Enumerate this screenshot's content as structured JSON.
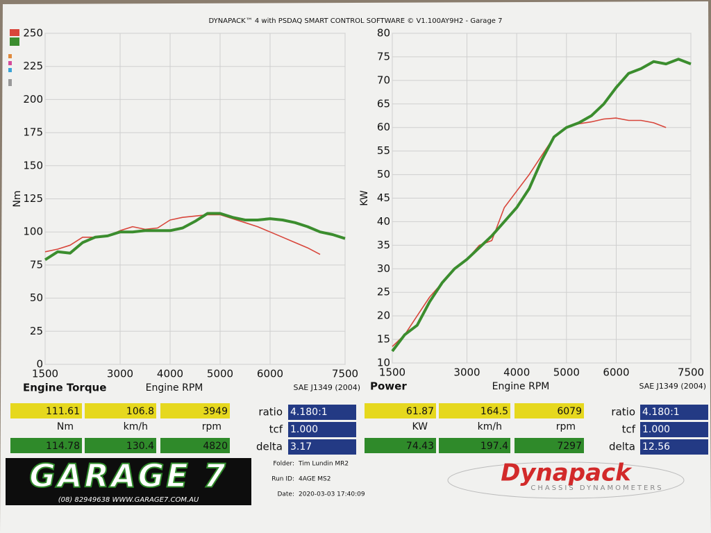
{
  "header": {
    "title": "DYNAPACK™ 4 with PSDAQ SMART CONTROL SOFTWARE © V1.100AY9H2 - Garage 7"
  },
  "chart_data": [
    {
      "type": "line",
      "title": "Engine Torque",
      "x_label": "Engine RPM",
      "y_label": "Nm",
      "standard": "SAE J1349 (2004)",
      "x": [
        1500,
        1750,
        2000,
        2250,
        2500,
        2750,
        3000,
        3250,
        3500,
        3750,
        4000,
        4250,
        4500,
        4750,
        5000,
        5250,
        5500,
        5750,
        6000,
        6250,
        6500,
        6750,
        7000,
        7250,
        7500
      ],
      "xlim": [
        1500,
        7500
      ],
      "xticks": [
        1500,
        3000,
        4000,
        5000,
        6000,
        7500
      ],
      "ylim": [
        0,
        250
      ],
      "yticks": [
        0,
        25,
        50,
        75,
        100,
        125,
        150,
        175,
        200,
        225,
        250
      ],
      "grid": true,
      "series": [
        {
          "color": "#d8453a",
          "values": [
            85,
            87,
            90,
            96,
            96,
            97,
            101,
            104,
            102,
            103,
            109,
            111,
            112,
            113,
            113,
            110,
            107,
            104,
            100,
            96,
            92,
            88,
            83,
            null,
            null
          ]
        },
        {
          "color": "#3b8d2e",
          "values": [
            79,
            85,
            84,
            92,
            96,
            97,
            100,
            100,
            101,
            101,
            101,
            103,
            108,
            114,
            114,
            111,
            109,
            109,
            110,
            109,
            107,
            104,
            100,
            98,
            95
          ]
        }
      ]
    },
    {
      "type": "line",
      "title": "Power",
      "x_label": "Engine RPM",
      "y_label": "KW",
      "standard": "SAE J1349 (2004)",
      "x": [
        1500,
        1750,
        2000,
        2250,
        2500,
        2750,
        3000,
        3250,
        3500,
        3750,
        4000,
        4250,
        4500,
        4750,
        5000,
        5250,
        5500,
        5750,
        6000,
        6250,
        6500,
        6750,
        7000,
        7250,
        7500
      ],
      "xlim": [
        1500,
        7500
      ],
      "xticks": [
        1500,
        3000,
        4000,
        5000,
        6000,
        7500
      ],
      "ylim": [
        10,
        80
      ],
      "yticks": [
        10,
        15,
        20,
        25,
        30,
        35,
        40,
        45,
        50,
        55,
        60,
        65,
        70,
        75,
        80
      ],
      "grid": true,
      "series": [
        {
          "color": "#d8453a",
          "values": [
            13.5,
            16,
            20,
            24,
            27,
            30,
            32,
            35,
            36,
            43,
            46.5,
            50,
            54,
            58,
            60,
            60.8,
            61.2,
            61.8,
            62,
            61.5,
            61.5,
            61,
            60,
            null,
            null
          ]
        },
        {
          "color": "#3b8d2e",
          "values": [
            12.5,
            16,
            18,
            23,
            27,
            30,
            32,
            34.5,
            37,
            40,
            43,
            47,
            53,
            58,
            60,
            61,
            62.5,
            65,
            68.5,
            71.5,
            72.5,
            74,
            73.5,
            74.5,
            73.5
          ]
        }
      ]
    }
  ],
  "readouts": [
    {
      "current": [
        "111.61",
        "106.8",
        "3949"
      ],
      "units": [
        "Nm",
        "km/h",
        "rpm"
      ],
      "peak": [
        "114.78",
        "130.4",
        "4820"
      ],
      "params": [
        [
          "ratio",
          "4.180:1"
        ],
        [
          "tcf",
          "1.000"
        ],
        [
          "delta",
          "3.17"
        ]
      ]
    },
    {
      "current": [
        "61.87",
        "164.5",
        "6079"
      ],
      "units": [
        "KW",
        "km/h",
        "rpm"
      ],
      "peak": [
        "74.43",
        "197.4",
        "7297"
      ],
      "params": [
        [
          "ratio",
          "4.180:1"
        ],
        [
          "tcf",
          "1.000"
        ],
        [
          "delta",
          "12.56"
        ]
      ]
    }
  ],
  "footer": {
    "logo": "GARAGE 7",
    "contact": "(08) 82949638  WWW.GARAGE7.COM.AU",
    "info": [
      [
        "Folder:",
        "Tim Lundin MR2"
      ],
      [
        "Run ID:",
        "4AGE MS2"
      ],
      [
        "Date:",
        "2020-03-03 17:40:09"
      ]
    ],
    "brand": "Dynapack",
    "brand_sub": "CHASSIS DYNAMOMETERS"
  }
}
